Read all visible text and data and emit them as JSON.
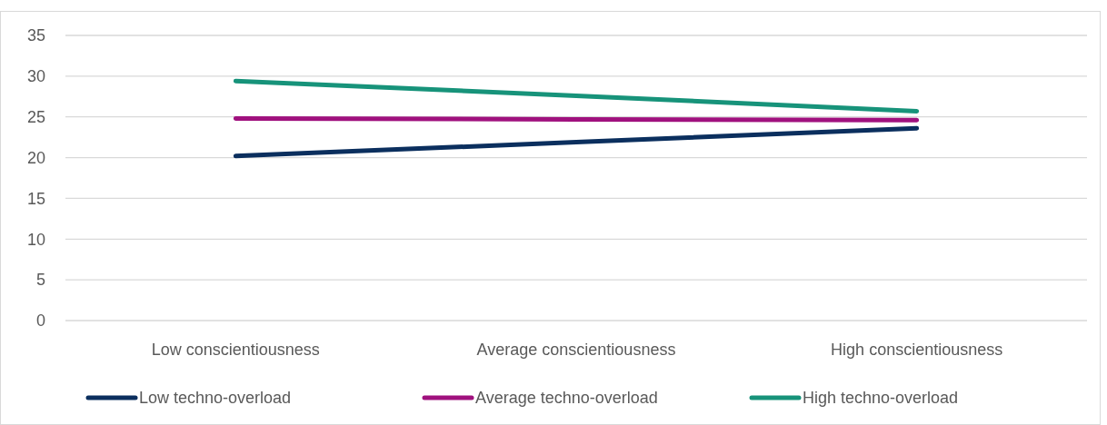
{
  "chart_data": {
    "type": "line",
    "categories": [
      "Low conscientiousness",
      "Average conscientiousness",
      "High conscientiousness"
    ],
    "series": [
      {
        "name": "Low techno-overload",
        "color": "#0b2f5e",
        "values": [
          20.2,
          21.9,
          23.6
        ]
      },
      {
        "name": "Average techno-overload",
        "color": "#a0117e",
        "values": [
          24.8,
          24.7,
          24.6
        ]
      },
      {
        "name": "High techno-overload",
        "color": "#17937a",
        "values": [
          29.4,
          27.6,
          25.7
        ]
      }
    ],
    "ylim": [
      0,
      35
    ],
    "yticks": [
      0,
      5,
      10,
      15,
      20,
      25,
      30,
      35
    ],
    "grid": "y",
    "legend": "bottom",
    "marker": "none",
    "line_style": "solid"
  }
}
